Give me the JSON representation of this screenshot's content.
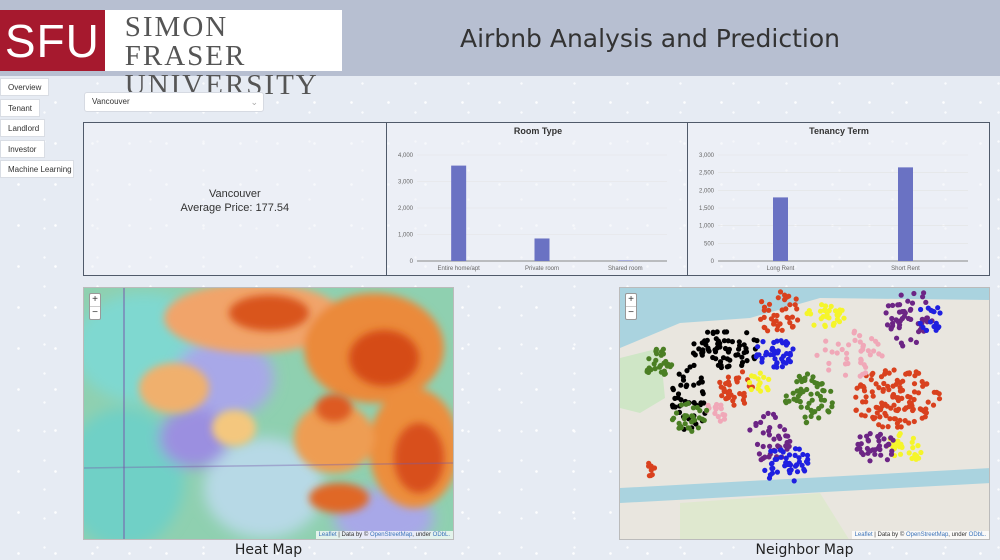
{
  "header": {
    "logo_mark": "SFU",
    "logo_line1": "SIMON FRASER",
    "logo_line2": "UNIVERSITY",
    "title": "Airbnb Analysis and Prediction"
  },
  "nav": {
    "items": [
      "Overview",
      "Tenant",
      "Landlord",
      "Investor",
      "Machine Learning"
    ]
  },
  "city_select": {
    "value": "Vancouver"
  },
  "summary": {
    "city": "Vancouver",
    "average_price": "Average Price: 177.54"
  },
  "chart_data": [
    {
      "type": "bar",
      "title": "Room Type",
      "categories": [
        "Entire home/apt",
        "Private room",
        "Shared room"
      ],
      "values": [
        3600,
        850,
        20
      ],
      "ylim": [
        0,
        4000
      ],
      "yticks": [
        0,
        1000,
        2000,
        3000,
        4000
      ],
      "ytick_labels": [
        "0",
        "1,000",
        "2,000",
        "3,000",
        "4,000"
      ],
      "grid": true,
      "color": "#6a72c3"
    },
    {
      "type": "bar",
      "title": "Tenancy Term",
      "categories": [
        "Long Rent",
        "Short Rent"
      ],
      "values": [
        1800,
        2650
      ],
      "ylim": [
        0,
        3000
      ],
      "yticks": [
        0,
        500,
        1000,
        1500,
        2000,
        2500,
        3000
      ],
      "ytick_labels": [
        "0",
        "500",
        "1,000",
        "1,500",
        "2,000",
        "2,500",
        "3,000"
      ],
      "grid": true,
      "color": "#6a72c3"
    }
  ],
  "maps": {
    "zoom_in": "+",
    "zoom_out": "−",
    "attribution_leaflet": "Leaflet",
    "attribution_middle": " | Data by © ",
    "attribution_osm": "OpenStreetMap",
    "attribution_under": ", under ",
    "attribution_odbl": "ODbL.",
    "heat_caption": "Heat Map",
    "neighbor_caption": "Neighbor Map"
  },
  "colors": {
    "header_bg": "#b7bfd1",
    "brand_red": "#a6192e",
    "bar": "#6a72c3",
    "cluster_colors": [
      "#000000",
      "#d9411e",
      "#4b7f24",
      "#1f1fe0",
      "#6c2585",
      "#f5f52a",
      "#f0a8b8"
    ]
  }
}
